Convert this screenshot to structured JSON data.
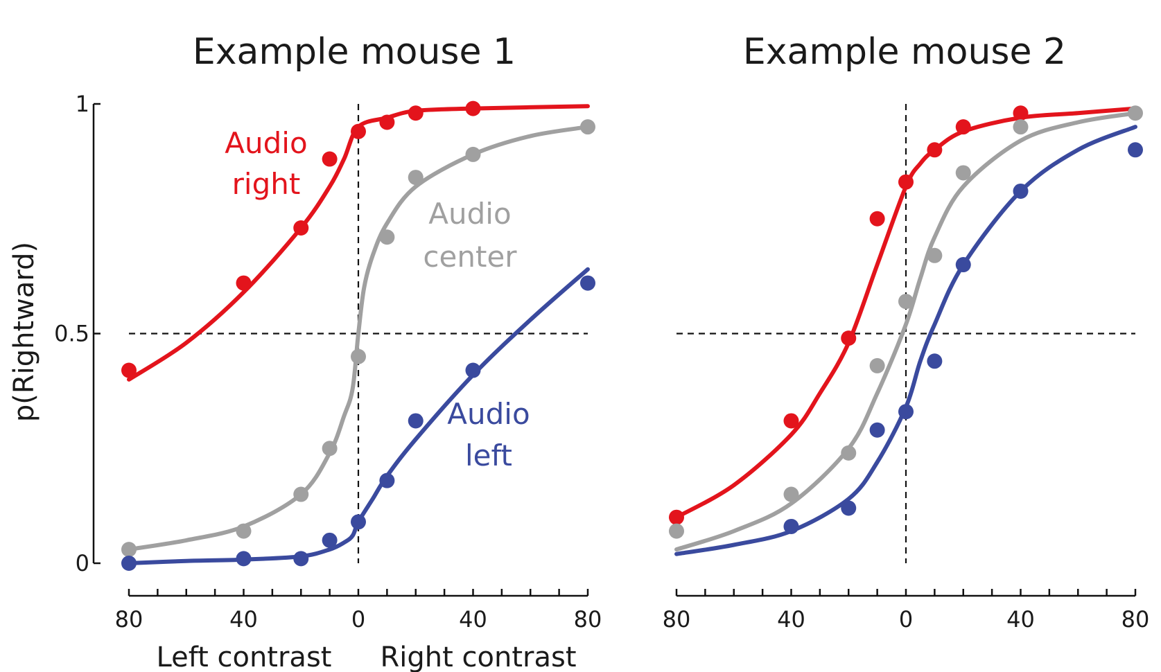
{
  "chart_data": [
    {
      "type": "scatter",
      "title": "Example mouse 1",
      "ylabel": "p(Rightward)",
      "xlabel_left": "Left contrast",
      "xlabel_right": "Right contrast",
      "ylim": [
        0,
        1
      ],
      "xlim": [
        -80,
        80
      ],
      "y_ticks": [
        0,
        0.5,
        1
      ],
      "y_tick_labels": [
        "0",
        "0.5",
        "1"
      ],
      "x_ticks": [
        -80,
        -40,
        0,
        40,
        80
      ],
      "x_tick_labels": [
        "80",
        "40",
        "0",
        "40",
        "80"
      ],
      "x_minor_ticks": [
        -70,
        -60,
        -50,
        -30,
        -20,
        -10,
        10,
        20,
        30,
        50,
        60,
        70
      ],
      "reference_lines": {
        "x": 0,
        "y": 0.5
      },
      "series": [
        {
          "name": "Audio right",
          "label_lines": [
            "Audio",
            "right"
          ],
          "color": "#e3141c",
          "x": [
            -80,
            -40,
            -20,
            -10,
            0,
            10,
            20,
            40
          ],
          "y": [
            0.42,
            0.61,
            0.73,
            0.88,
            0.94,
            0.96,
            0.98,
            0.99
          ],
          "fit": {
            "x0": -40,
            "k": 0.065,
            "lapse_low": 0.18,
            "lapse_high": 0.0
          },
          "fit_points": [
            [
              -80,
              0.4
            ],
            [
              -60,
              0.48
            ],
            [
              -40,
              0.59
            ],
            [
              -20,
              0.73
            ],
            [
              -10,
              0.82
            ],
            [
              -5,
              0.88
            ],
            [
              0,
              0.95
            ],
            [
              10,
              0.97
            ],
            [
              20,
              0.985
            ],
            [
              40,
              0.99
            ],
            [
              80,
              0.995
            ]
          ]
        },
        {
          "name": "Audio center",
          "label_lines": [
            "Audio",
            "center"
          ],
          "color": "#a0a0a0",
          "x": [
            -80,
            -40,
            -20,
            -10,
            0,
            10,
            20,
            40,
            80
          ],
          "y": [
            0.03,
            0.07,
            0.15,
            0.25,
            0.45,
            0.71,
            0.84,
            0.89,
            0.95
          ],
          "fit_points": [
            [
              -80,
              0.03
            ],
            [
              -60,
              0.05
            ],
            [
              -40,
              0.08
            ],
            [
              -20,
              0.15
            ],
            [
              -10,
              0.24
            ],
            [
              -5,
              0.32
            ],
            [
              -2,
              0.38
            ],
            [
              0,
              0.5
            ],
            [
              2,
              0.6
            ],
            [
              5,
              0.67
            ],
            [
              10,
              0.74
            ],
            [
              20,
              0.82
            ],
            [
              40,
              0.89
            ],
            [
              60,
              0.93
            ],
            [
              80,
              0.95
            ]
          ]
        },
        {
          "name": "Audio left",
          "label_lines": [
            "Audio",
            "left"
          ],
          "color": "#3a4a9e",
          "x": [
            -80,
            -40,
            -20,
            -10,
            0,
            10,
            20,
            40,
            80
          ],
          "y": [
            0.0,
            0.01,
            0.01,
            0.05,
            0.09,
            0.18,
            0.31,
            0.42,
            0.61
          ],
          "fit_points": [
            [
              -80,
              0.0
            ],
            [
              -60,
              0.005
            ],
            [
              -40,
              0.008
            ],
            [
              -20,
              0.015
            ],
            [
              -10,
              0.03
            ],
            [
              -5,
              0.045
            ],
            [
              -2,
              0.06
            ],
            [
              0,
              0.09
            ],
            [
              5,
              0.14
            ],
            [
              10,
              0.19
            ],
            [
              20,
              0.27
            ],
            [
              40,
              0.41
            ],
            [
              60,
              0.53
            ],
            [
              80,
              0.64
            ]
          ]
        }
      ]
    },
    {
      "type": "scatter",
      "title": "Example mouse 2",
      "ylim": [
        0,
        1
      ],
      "xlim": [
        -80,
        80
      ],
      "x_ticks": [
        -80,
        -40,
        0,
        40,
        80
      ],
      "x_tick_labels": [
        "80",
        "40",
        "0",
        "40",
        "80"
      ],
      "x_minor_ticks": [
        -70,
        -60,
        -50,
        -30,
        -20,
        -10,
        10,
        20,
        30,
        50,
        60,
        70
      ],
      "reference_lines": {
        "x": 0,
        "y": 0.5
      },
      "series": [
        {
          "name": "Audio right",
          "color": "#e3141c",
          "x": [
            -80,
            -40,
            -20,
            -10,
            0,
            10,
            20,
            40
          ],
          "y": [
            0.1,
            0.31,
            0.49,
            0.75,
            0.83,
            0.9,
            0.95,
            0.98
          ],
          "fit_points": [
            [
              -80,
              0.1
            ],
            [
              -60,
              0.17
            ],
            [
              -40,
              0.28
            ],
            [
              -30,
              0.37
            ],
            [
              -20,
              0.48
            ],
            [
              -10,
              0.65
            ],
            [
              0,
              0.82
            ],
            [
              5,
              0.87
            ],
            [
              10,
              0.9
            ],
            [
              20,
              0.94
            ],
            [
              40,
              0.97
            ],
            [
              60,
              0.98
            ],
            [
              80,
              0.99
            ]
          ]
        },
        {
          "name": "Audio center",
          "color": "#a0a0a0",
          "x": [
            -80,
            -40,
            -20,
            -10,
            0,
            10,
            20,
            40,
            80
          ],
          "y": [
            0.07,
            0.15,
            0.24,
            0.43,
            0.57,
            0.67,
            0.85,
            0.95,
            0.98
          ],
          "fit_points": [
            [
              -80,
              0.03
            ],
            [
              -60,
              0.07
            ],
            [
              -40,
              0.13
            ],
            [
              -20,
              0.25
            ],
            [
              -10,
              0.37
            ],
            [
              0,
              0.52
            ],
            [
              5,
              0.62
            ],
            [
              10,
              0.71
            ],
            [
              20,
              0.82
            ],
            [
              40,
              0.92
            ],
            [
              60,
              0.96
            ],
            [
              80,
              0.98
            ]
          ]
        },
        {
          "name": "Audio left",
          "color": "#3a4a9e",
          "x": [
            -80,
            -40,
            -20,
            -10,
            0,
            10,
            20,
            40,
            80
          ],
          "y": [
            null,
            0.08,
            0.12,
            0.29,
            0.33,
            0.44,
            0.65,
            0.81,
            0.9
          ],
          "fit_points": [
            [
              -80,
              0.02
            ],
            [
              -60,
              0.04
            ],
            [
              -40,
              0.07
            ],
            [
              -20,
              0.14
            ],
            [
              -10,
              0.22
            ],
            [
              0,
              0.34
            ],
            [
              5,
              0.44
            ],
            [
              10,
              0.52
            ],
            [
              20,
              0.65
            ],
            [
              40,
              0.81
            ],
            [
              60,
              0.9
            ],
            [
              80,
              0.95
            ]
          ]
        }
      ]
    }
  ]
}
